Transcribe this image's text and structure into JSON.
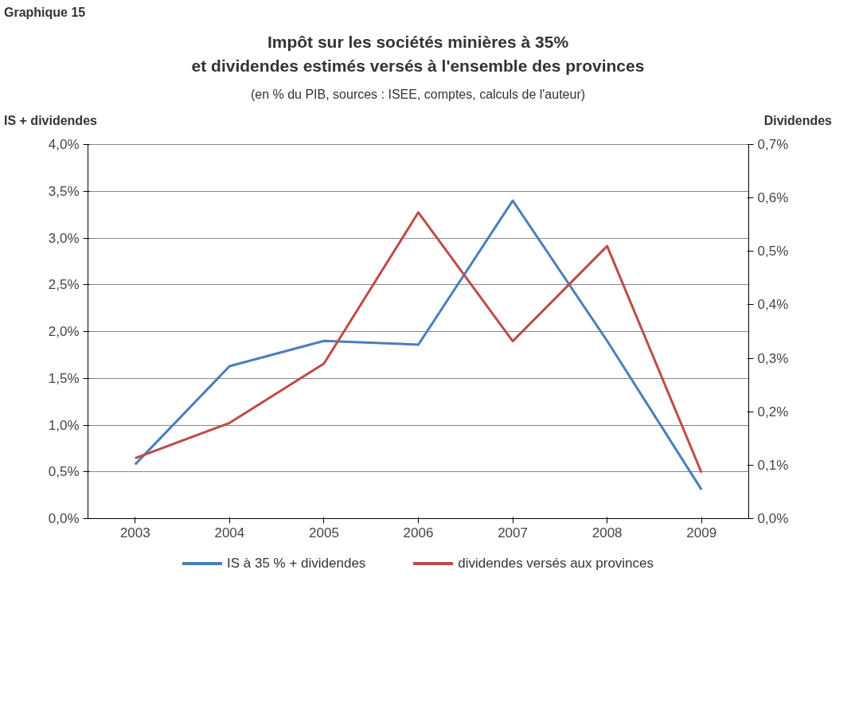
{
  "chart_data": {
    "type": "line",
    "title": "Impôt sur les sociétés minières à 35%\net dividendes estimés versés à l'ensemble des provinces",
    "subtitle": "(en % du PIB, sources : ISEE, comptes, calculs de l'auteur)",
    "ylabel": "IS + dividendes",
    "y2label": "Dividendes",
    "annotations": [
      "Graphique 15"
    ],
    "categories": [
      "2003",
      "2004",
      "2005",
      "2006",
      "2007",
      "2008",
      "2009"
    ],
    "series": [
      {
        "name": "IS à 35 % + dividendes",
        "color": "#4a7ebb",
        "values": [
          0.58,
          1.63,
          1.9,
          1.86,
          3.4,
          1.9,
          0.31
        ]
      },
      {
        "name": "dividendes versés aux provinces",
        "color": "#be4b48",
        "axis": "y2",
        "values": [
          0.113,
          0.179,
          0.29,
          0.573,
          0.332,
          0.51,
          0.086
        ]
      }
    ],
    "ylim": [
      0,
      4
    ],
    "yticks": [
      {
        "value": 0,
        "label": "0,0%"
      },
      {
        "value": 0.5,
        "label": "0,5%"
      },
      {
        "value": 1,
        "label": "1,0%"
      },
      {
        "value": 1.5,
        "label": "1,5%"
      },
      {
        "value": 2,
        "label": "2,0%"
      },
      {
        "value": 2.5,
        "label": "2,5%"
      },
      {
        "value": 3,
        "label": "3,0%"
      },
      {
        "value": 3.5,
        "label": "3,5%"
      },
      {
        "value": 4,
        "label": "4,0%"
      }
    ],
    "y2lim": [
      0,
      0.7
    ],
    "y2ticks": [
      {
        "value": 0,
        "label": "0,0%"
      },
      {
        "value": 0.1,
        "label": "0,1%"
      },
      {
        "value": 0.2,
        "label": "0,2%"
      },
      {
        "value": 0.3,
        "label": "0,3%"
      },
      {
        "value": 0.4,
        "label": "0,4%"
      },
      {
        "value": 0.5,
        "label": "0,5%"
      },
      {
        "value": 0.6,
        "label": "0,6%"
      },
      {
        "value": 0.7,
        "label": "0,7%"
      }
    ],
    "grid": "y",
    "legend": "bottom",
    "marker": "none",
    "line_style": "solid"
  }
}
